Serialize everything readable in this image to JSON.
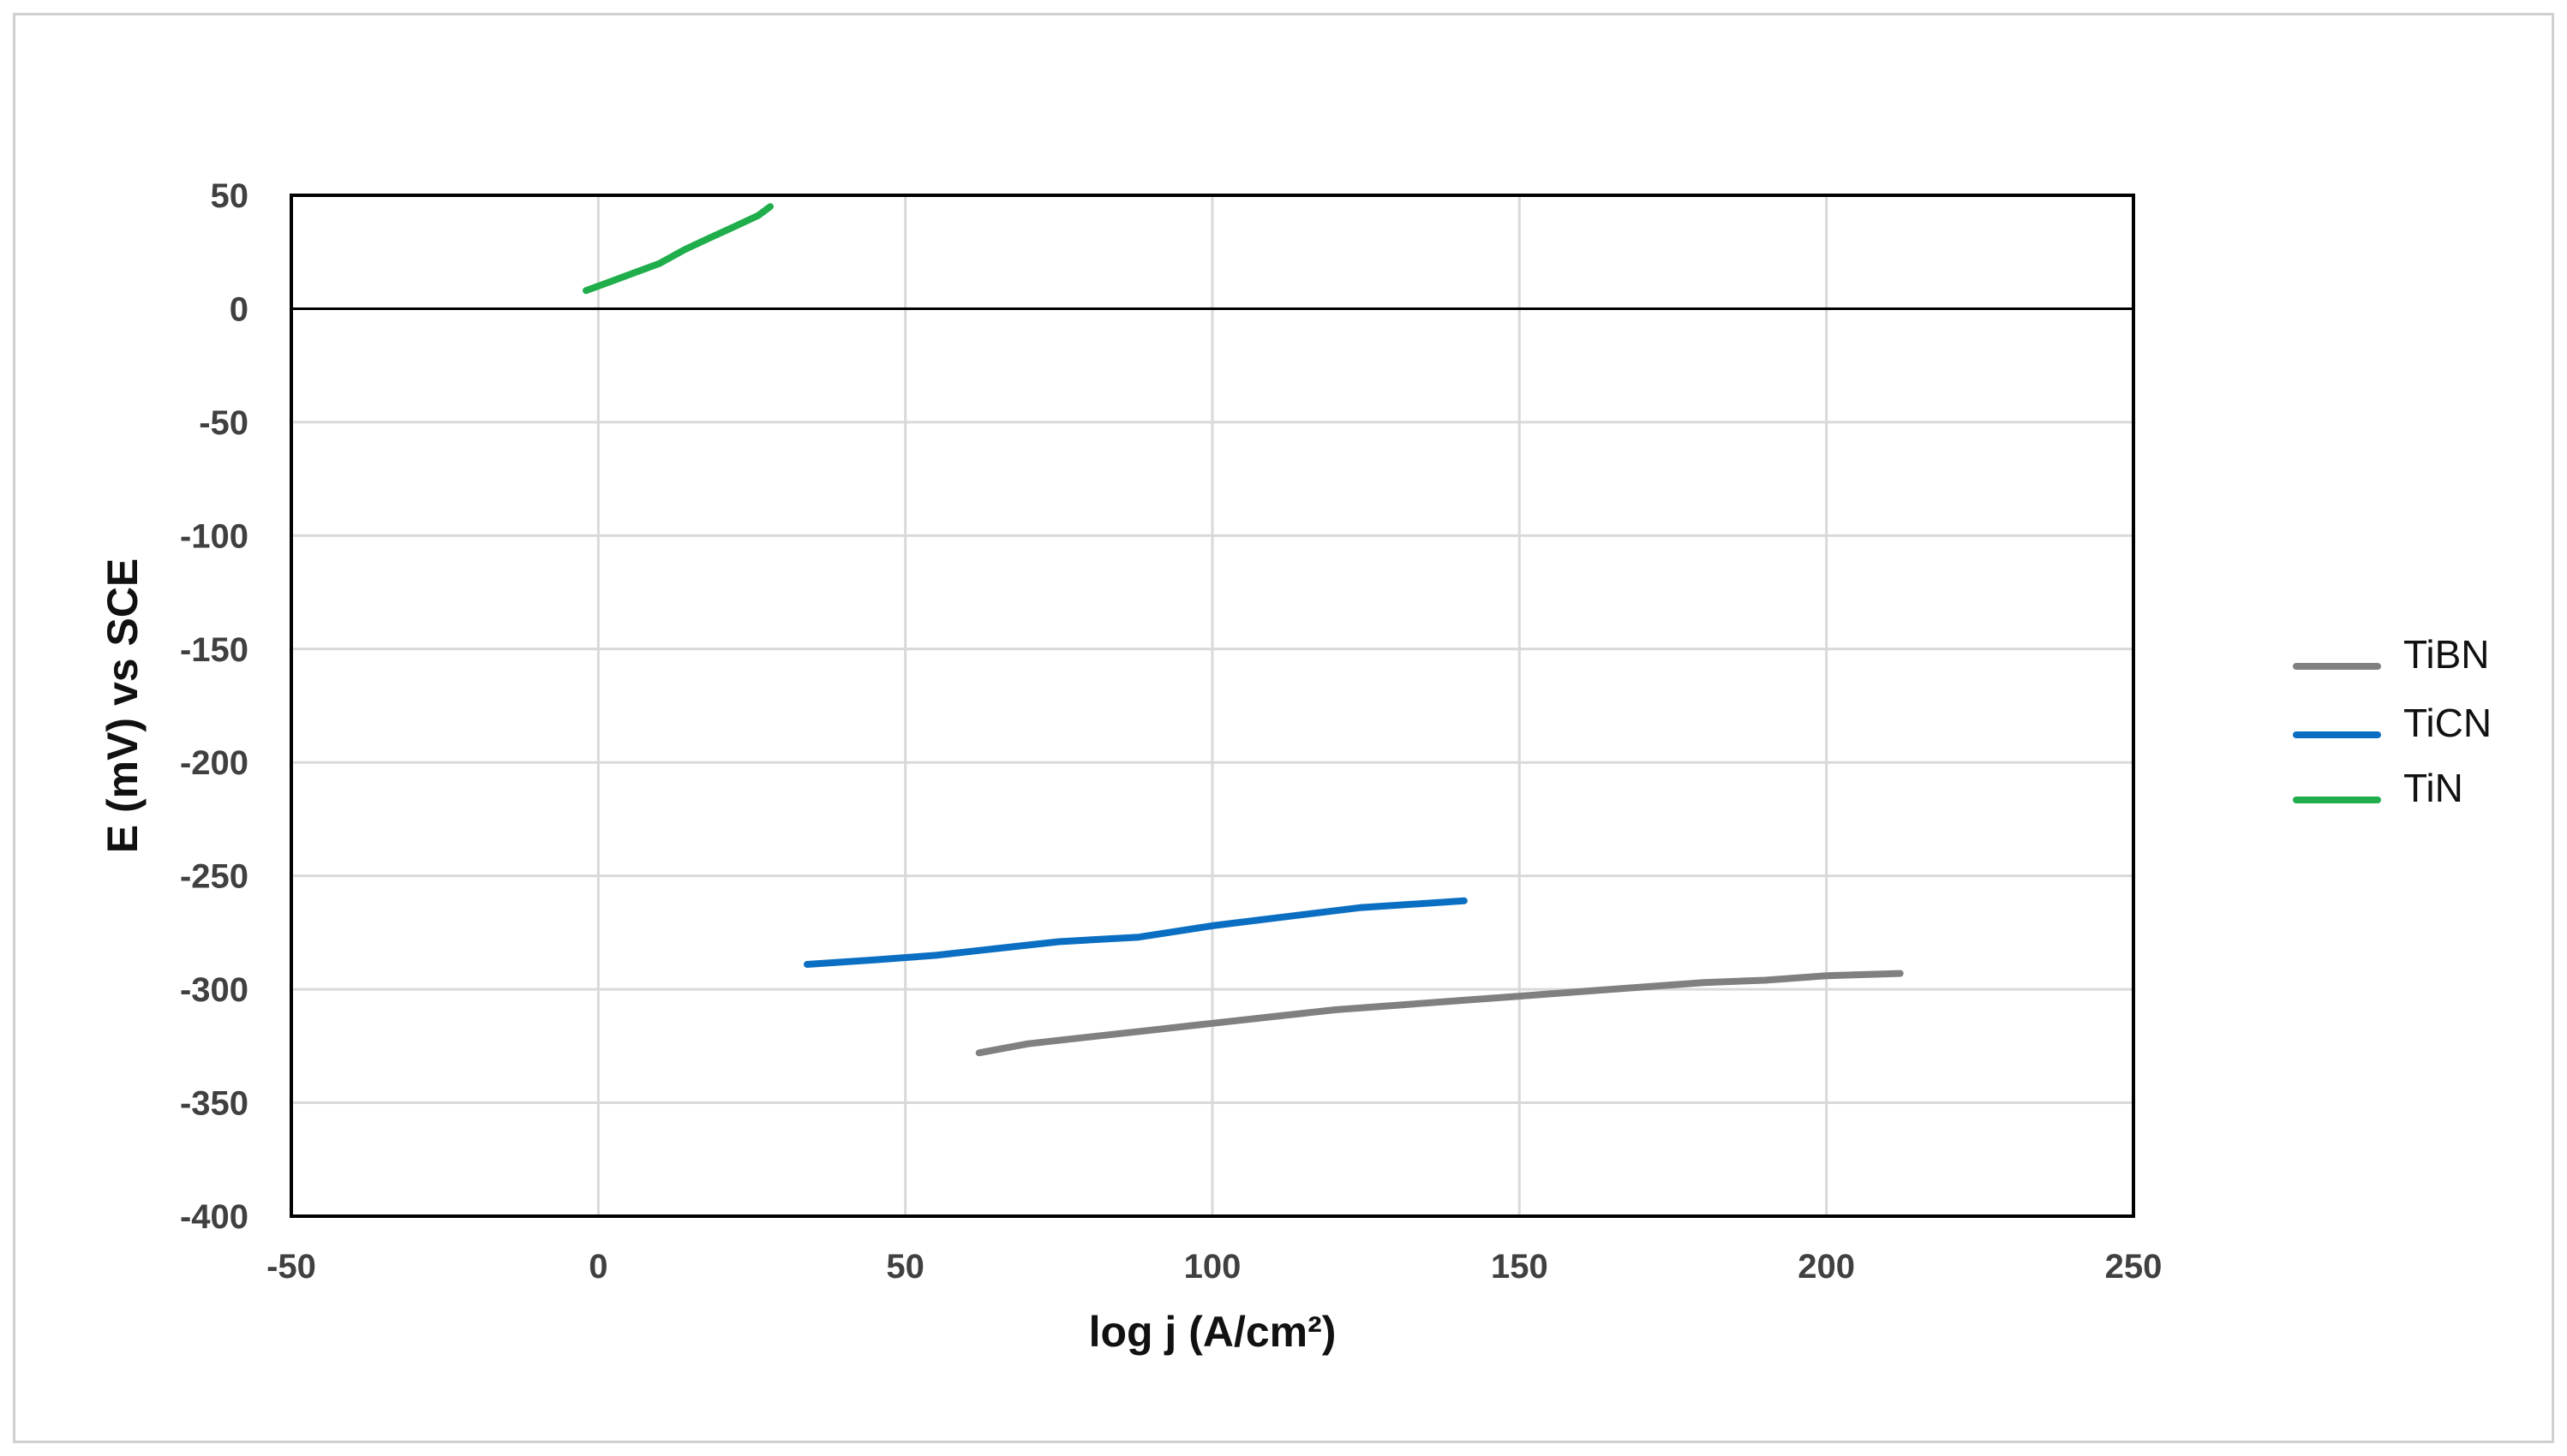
{
  "chart_data": {
    "type": "line",
    "xlabel": "log j (A/cm²)",
    "ylabel": "E (mV) vs SCE",
    "xlim": [
      -50,
      250
    ],
    "ylim": [
      -400,
      50
    ],
    "x_ticks": [
      -50,
      0,
      50,
      100,
      150,
      200,
      250
    ],
    "y_ticks": [
      50,
      0,
      -50,
      -100,
      -150,
      -200,
      -250,
      -300,
      -350,
      -400
    ],
    "grid": true,
    "legend_position": "right",
    "series": [
      {
        "name": "TiBN",
        "color": "#808080",
        "x": [
          62,
          70,
          80,
          90,
          100,
          110,
          120,
          130,
          140,
          150,
          160,
          170,
          180,
          190,
          200,
          212
        ],
        "y": [
          -328,
          -324,
          -321,
          -318,
          -315,
          -312,
          -309,
          -307,
          -305,
          -303,
          -301,
          -299,
          -297,
          -296,
          -294,
          -293
        ]
      },
      {
        "name": "TiCN",
        "color": "#0a6fc2",
        "x": [
          34,
          45,
          55,
          65,
          75,
          88,
          100,
          112,
          124,
          141
        ],
        "y": [
          -289,
          -287,
          -285,
          -282,
          -279,
          -277,
          -272,
          -268,
          -264,
          -261
        ]
      },
      {
        "name": "TiN",
        "color": "#1fae4b",
        "x": [
          -2,
          2,
          6,
          10,
          14,
          18,
          22,
          26,
          28
        ],
        "y": [
          8,
          12,
          16,
          20,
          26,
          31,
          36,
          41,
          45
        ]
      }
    ]
  }
}
